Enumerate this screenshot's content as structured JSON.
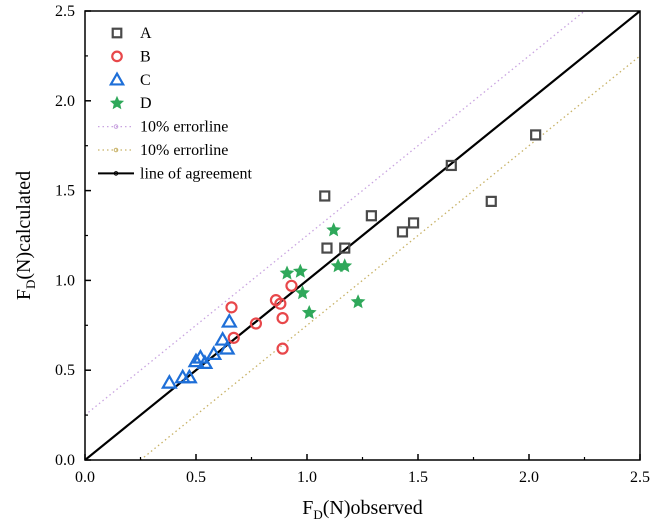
{
  "chart_data": {
    "type": "scatter",
    "xlabel": "F_D(N)observed",
    "ylabel": "F_D(N)calculated",
    "xlabel_parts": {
      "main": "F",
      "sub": "D",
      "rest": "(N)observed"
    },
    "ylabel_parts": {
      "main": "F",
      "sub": "D",
      "rest": "(N)calculated"
    },
    "xlim": [
      0.0,
      2.5
    ],
    "ylim": [
      0.0,
      2.5
    ],
    "xticks": [
      "0.0",
      "0.5",
      "1.0",
      "1.5",
      "2.0",
      "2.5"
    ],
    "yticks": [
      "0.0",
      "0.5",
      "1.0",
      "1.5",
      "2.0",
      "2.5"
    ],
    "legend_position": "top-left",
    "series": [
      {
        "name": "A",
        "marker": "square",
        "color": "#4a4a4a",
        "points": [
          [
            1.08,
            1.47
          ],
          [
            1.09,
            1.18
          ],
          [
            1.17,
            1.18
          ],
          [
            1.29,
            1.36
          ],
          [
            1.43,
            1.27
          ],
          [
            1.48,
            1.32
          ],
          [
            1.65,
            1.64
          ],
          [
            1.83,
            1.44
          ],
          [
            2.03,
            1.81
          ]
        ]
      },
      {
        "name": "B",
        "marker": "circle",
        "color": "#e8474a",
        "points": [
          [
            0.66,
            0.85
          ],
          [
            0.67,
            0.68
          ],
          [
            0.77,
            0.76
          ],
          [
            0.86,
            0.89
          ],
          [
            0.88,
            0.87
          ],
          [
            0.89,
            0.79
          ],
          [
            0.89,
            0.62
          ],
          [
            0.93,
            0.97
          ]
        ]
      },
      {
        "name": "C",
        "marker": "triangle",
        "color": "#1e6fd8",
        "points": [
          [
            0.38,
            0.43
          ],
          [
            0.44,
            0.46
          ],
          [
            0.47,
            0.46
          ],
          [
            0.5,
            0.55
          ],
          [
            0.52,
            0.57
          ],
          [
            0.54,
            0.54
          ],
          [
            0.58,
            0.59
          ],
          [
            0.62,
            0.67
          ],
          [
            0.64,
            0.62
          ],
          [
            0.65,
            0.77
          ]
        ]
      },
      {
        "name": "D",
        "marker": "star",
        "color": "#2fa85a",
        "points": [
          [
            0.91,
            1.04
          ],
          [
            0.97,
            1.05
          ],
          [
            0.98,
            0.93
          ],
          [
            1.01,
            0.82
          ],
          [
            1.12,
            1.28
          ],
          [
            1.14,
            1.08
          ],
          [
            1.17,
            1.08
          ],
          [
            1.23,
            0.88
          ]
        ]
      }
    ],
    "lines": [
      {
        "name": "10% errorline",
        "kind": "upper",
        "factor": 1.1,
        "color": "#c9a4e0",
        "style": "dotted"
      },
      {
        "name": "10% errorline",
        "kind": "lower",
        "factor": 0.9,
        "color": "#c8b267",
        "style": "dotted"
      },
      {
        "name": "line of agreement",
        "kind": "agreement",
        "factor": 1.0,
        "color": "#000000",
        "style": "solid"
      }
    ]
  }
}
